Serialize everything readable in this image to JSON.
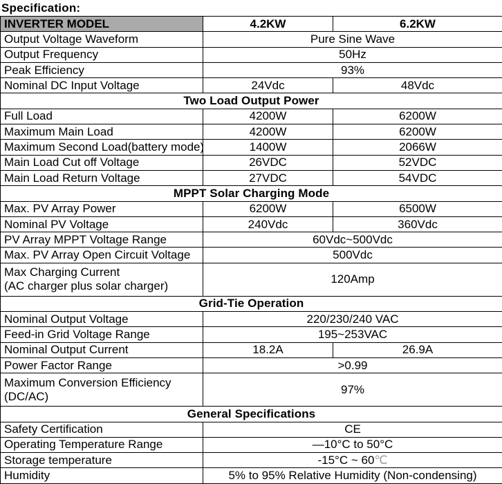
{
  "page_title": "Specification:",
  "colors": {
    "header_bg": "#aaaaaa",
    "border": "#000000",
    "light_glyph": "#9e9e9e"
  },
  "table": {
    "header": {
      "model_label": "INVERTER MODEL",
      "models": [
        "4.2KW",
        "6.2KW"
      ]
    },
    "rows": [
      {
        "type": "spec",
        "label": "Output Voltage Waveform",
        "value": "Pure Sine Wave",
        "span": true
      },
      {
        "type": "spec",
        "label": "Output Frequency",
        "value": "50Hz",
        "span": true
      },
      {
        "type": "spec",
        "label": "Peak Efficiency",
        "value": "93%",
        "span": true
      },
      {
        "type": "spec",
        "label": "Nominal DC Input Voltage",
        "values": [
          "24Vdc",
          "48Vdc"
        ]
      },
      {
        "type": "section",
        "label": "Two Load Output Power"
      },
      {
        "type": "spec",
        "label": "Full Load",
        "values": [
          "4200W",
          "6200W"
        ]
      },
      {
        "type": "spec",
        "label": "Maximum Main Load",
        "values": [
          "4200W",
          "6200W"
        ]
      },
      {
        "type": "spec",
        "label": "Maximum Second Load(battery mode)",
        "values": [
          "1400W",
          "2066W"
        ]
      },
      {
        "type": "spec",
        "label": "Main Load Cut off Voltage",
        "values": [
          "26VDC",
          "52VDC"
        ]
      },
      {
        "type": "spec",
        "label": "Main Load Return Voltage",
        "values": [
          "27VDC",
          "54VDC"
        ]
      },
      {
        "type": "section",
        "label": "MPPT Solar Charging Mode"
      },
      {
        "type": "spec",
        "label": "Max. PV Array Power",
        "values": [
          "6200W",
          "6500W"
        ]
      },
      {
        "type": "spec",
        "label": "Nominal PV Voltage",
        "values": [
          "240Vdc",
          "360Vdc"
        ]
      },
      {
        "type": "spec",
        "label": "PV Array MPPT Voltage Range",
        "value": "60Vdc~500Vdc",
        "span": true
      },
      {
        "type": "spec",
        "label": "Max. PV Array Open Circuit Voltage",
        "value": "500Vdc",
        "span": true
      },
      {
        "type": "spec",
        "label": "Max Charging Current",
        "label2": "(AC charger plus solar charger)",
        "value": "120Amp",
        "span": true,
        "tall": true
      },
      {
        "type": "section",
        "label": "Grid-Tie Operation"
      },
      {
        "type": "spec",
        "label": "Nominal Output Voltage",
        "value": "220/230/240 VAC",
        "span": true
      },
      {
        "type": "spec",
        "label": "Feed-in Grid Voltage Range",
        "value": "195~253VAC",
        "span": true
      },
      {
        "type": "spec",
        "label": "Nominal Output Current",
        "values": [
          "18.2A",
          "26.9A"
        ]
      },
      {
        "type": "spec",
        "label": "Power Factor Range",
        "value": ">0.99",
        "span": true
      },
      {
        "type": "spec",
        "label": "Maximum Conversion Efficiency",
        "label2": "(DC/AC)",
        "value": "97%",
        "span": true,
        "tall": true
      },
      {
        "type": "section",
        "label": "General Specifications"
      },
      {
        "type": "spec",
        "label": "Safety Certification",
        "value": "CE",
        "span": true
      },
      {
        "type": "spec",
        "label": "Operating Temperature Range",
        "value": "—10°C to 50°C",
        "span": true
      },
      {
        "type": "spec",
        "label": "Storage temperature",
        "value": "-15°C ~ 60",
        "value_suffix": "℃",
        "span": true
      },
      {
        "type": "spec",
        "label": "Humidity",
        "value": "5% to 95% Relative Humidity (Non-condensing)",
        "span": true
      }
    ]
  }
}
